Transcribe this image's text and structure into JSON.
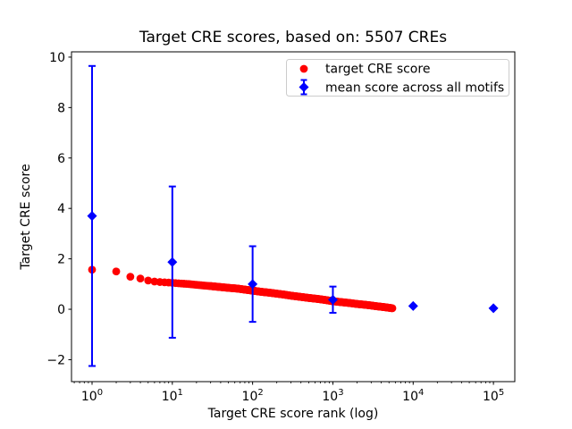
{
  "title": "Target CRE scores, based on: 5507 CREs",
  "chart_data": {
    "type": "scatter",
    "title": "Target CRE scores, based on: 5507 CREs",
    "xlabel": "Target CRE score rank (log)",
    "ylabel": "Target CRE score",
    "x_scale": "log",
    "xlim_log10": [
      -0.256,
      5.266
    ],
    "ylim": [
      -2.87,
      10.21
    ],
    "x_tick_exponents": [
      0,
      1,
      2,
      3,
      4,
      5
    ],
    "y_ticks": [
      10,
      8,
      6,
      4,
      2,
      0,
      -2
    ],
    "grid": false,
    "legend_position": "upper right",
    "n_points_total": 5507,
    "series": [
      {
        "name": "target CRE score",
        "marker": "circle",
        "color": "#ff0000",
        "sampled": true,
        "max_rank": 5507,
        "points": [
          [
            1,
            1.57
          ],
          [
            2,
            1.5
          ],
          [
            3,
            1.29
          ],
          [
            4,
            1.22
          ],
          [
            5,
            1.14
          ],
          [
            6,
            1.1
          ],
          [
            7,
            1.08
          ],
          [
            8,
            1.07
          ],
          [
            9,
            1.06
          ],
          [
            10,
            1.05
          ],
          [
            13,
            1.02
          ],
          [
            16,
            1.0
          ],
          [
            20,
            0.97
          ],
          [
            25,
            0.94
          ],
          [
            30,
            0.92
          ],
          [
            40,
            0.88
          ],
          [
            50,
            0.85
          ],
          [
            65,
            0.82
          ],
          [
            80,
            0.78
          ],
          [
            100,
            0.74
          ],
          [
            130,
            0.69
          ],
          [
            160,
            0.66
          ],
          [
            200,
            0.62
          ],
          [
            250,
            0.58
          ],
          [
            300,
            0.54
          ],
          [
            400,
            0.49
          ],
          [
            500,
            0.45
          ],
          [
            650,
            0.41
          ],
          [
            800,
            0.37
          ],
          [
            1000,
            0.32
          ],
          [
            1300,
            0.28
          ],
          [
            1600,
            0.25
          ],
          [
            2000,
            0.21
          ],
          [
            2500,
            0.18
          ],
          [
            3000,
            0.15
          ],
          [
            3500,
            0.12
          ],
          [
            4000,
            0.1
          ],
          [
            4500,
            0.08
          ],
          [
            5000,
            0.06
          ],
          [
            5507,
            0.04
          ]
        ]
      },
      {
        "name": "mean score across all motifs",
        "marker": "diamond",
        "color": "#0000ff",
        "x": [
          1,
          10,
          100,
          1000,
          10000,
          100000
        ],
        "y": [
          3.7,
          1.87,
          1.0,
          0.38,
          0.13,
          0.04
        ],
        "yerr": [
          5.95,
          3.0,
          1.5,
          0.52,
          0.0,
          0.0
        ]
      }
    ]
  }
}
